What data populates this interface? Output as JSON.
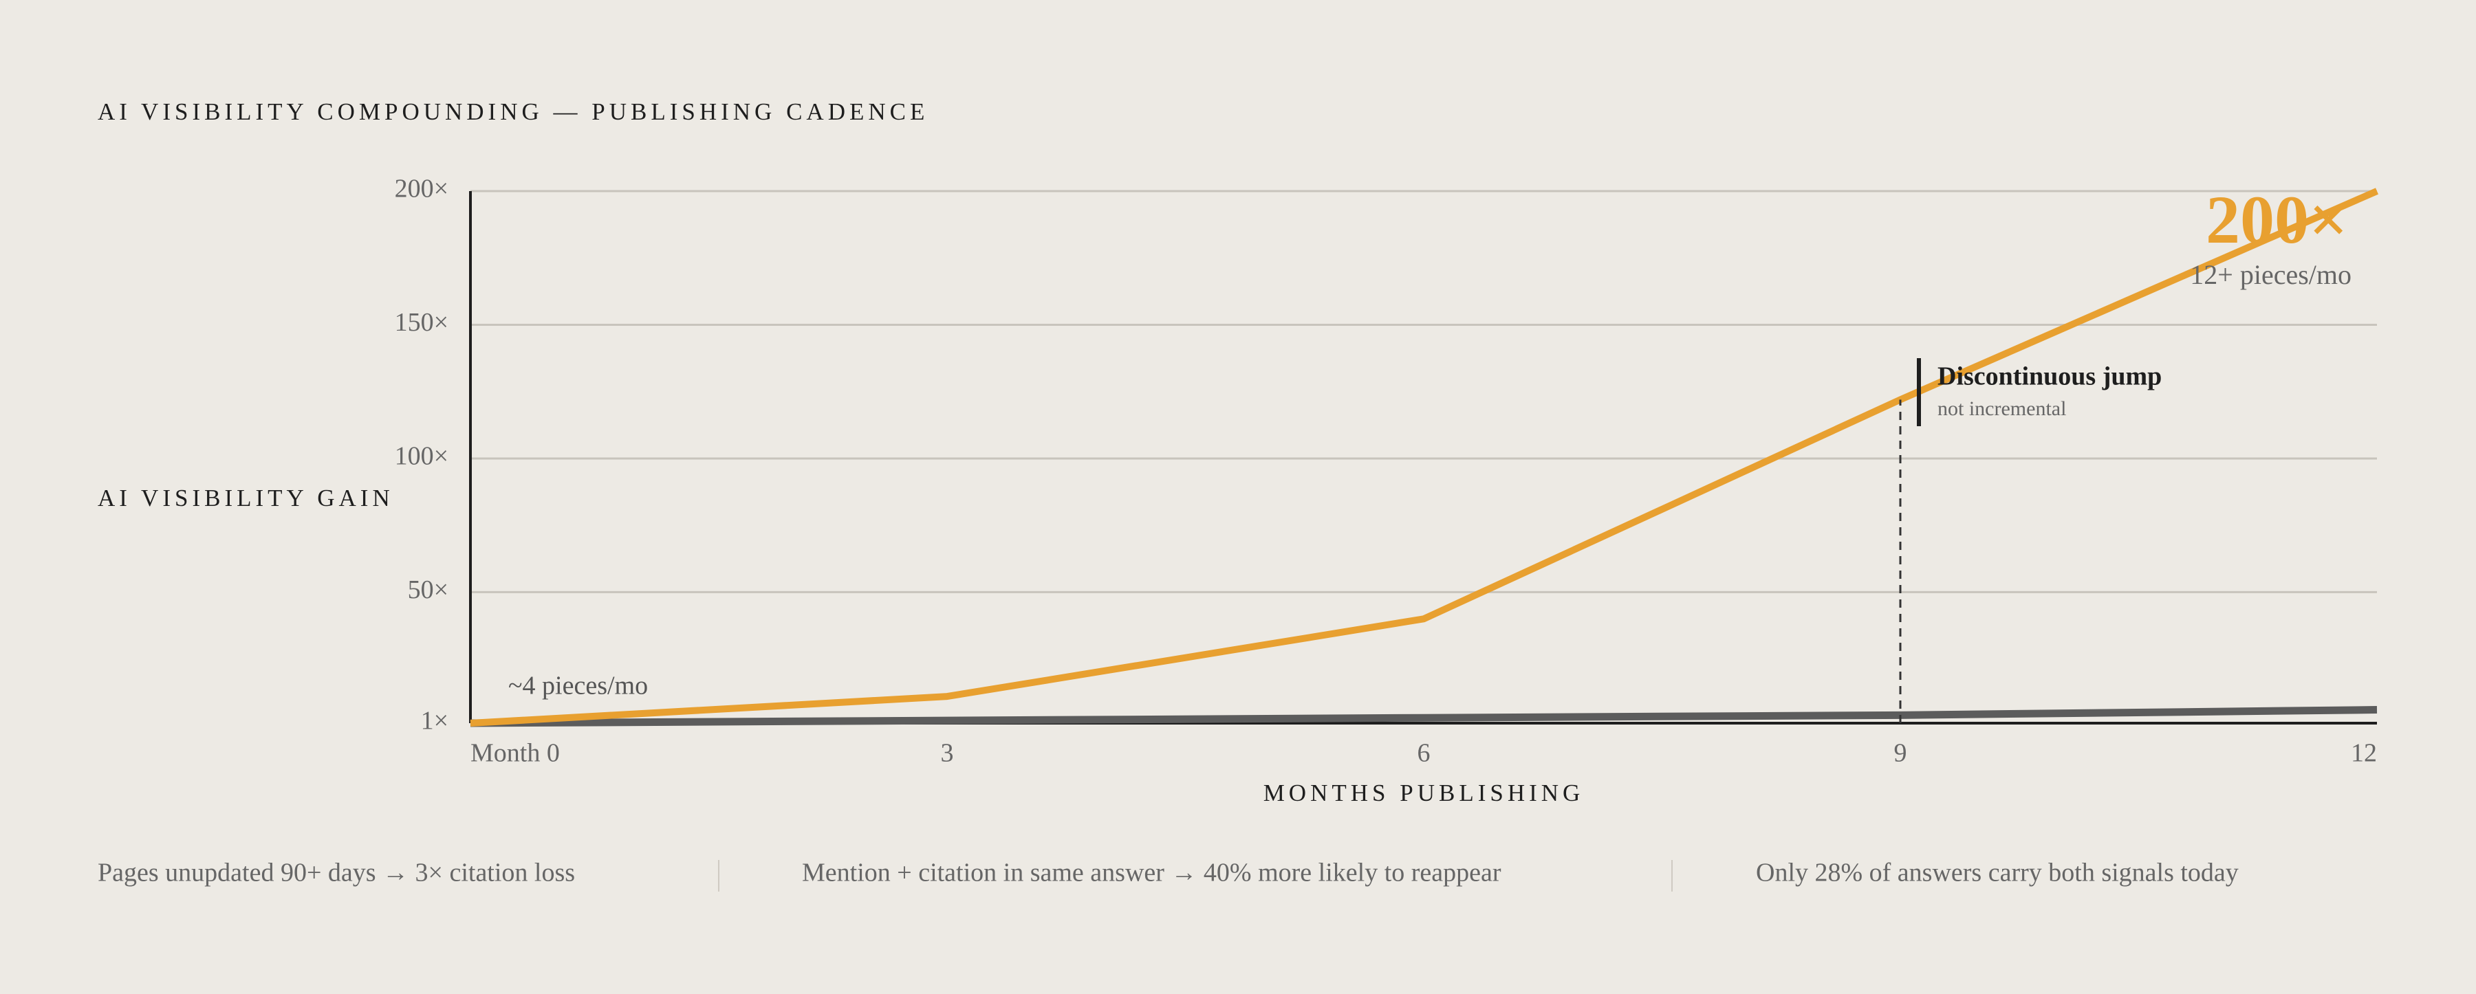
{
  "chart_data": {
    "type": "line",
    "title": "AI VISIBILITY COMPOUNDING — PUBLISHING CADENCE",
    "y_label": "AI VISIBILITY GAIN",
    "x_label": "MONTHS PUBLISHING",
    "x": [
      0,
      3,
      6,
      9,
      12
    ],
    "series": [
      {
        "color": "#e8a030",
        "values": [
          1,
          11,
          40,
          122,
          200
        ]
      },
      {
        "color": "#5c5c5c",
        "values": [
          1,
          2,
          3,
          4,
          6
        ]
      }
    ],
    "xlim": [
      0,
      12
    ],
    "xticks": [
      {
        "value": 0,
        "label": "Month 0"
      },
      3,
      6,
      9,
      12
    ],
    "ylim": [
      1,
      200
    ],
    "yticks": [
      {
        "value": 1,
        "label": "1×"
      },
      {
        "value": 50,
        "label": "50×"
      },
      {
        "value": 100,
        "label": "100×"
      },
      {
        "value": 150,
        "label": "150×"
      },
      {
        "value": 200,
        "label": "200×"
      }
    ],
    "grid": true,
    "annotations": [
      "200×",
      "12+ pieces/mo",
      "Discontinuous jump",
      "not incremental",
      "~4 pieces/mo"
    ]
  },
  "footer": [
    "Pages unupdated 90+ days → 3× citation loss",
    "Mention + citation in same answer → 40% more likely to reappear",
    "Only 28% of answers carry both signals today"
  ]
}
